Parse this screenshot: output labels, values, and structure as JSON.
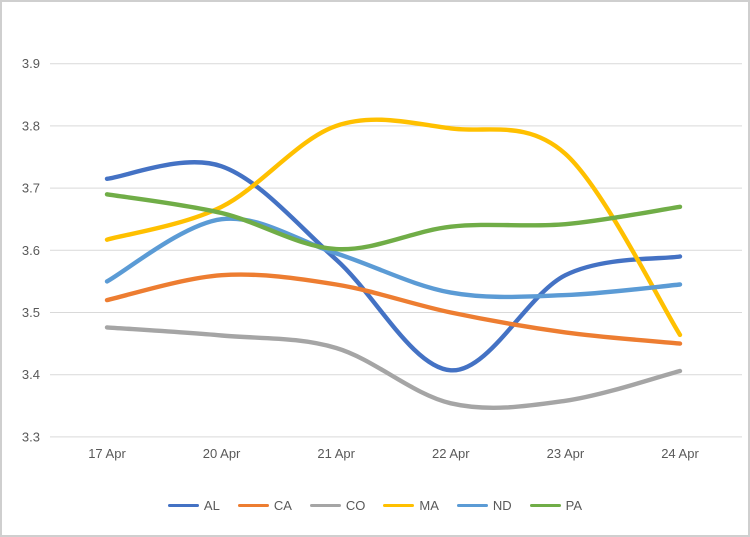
{
  "chart_data": {
    "type": "line",
    "smooth": true,
    "title": "",
    "xlabel": "",
    "ylabel": "",
    "categories": [
      "17 Apr",
      "20 Apr",
      "21 Apr",
      "22 Apr",
      "23 Apr",
      "24 Apr"
    ],
    "series": [
      {
        "name": "AL",
        "color": "#4472C4",
        "values": [
          3.715,
          3.735,
          3.585,
          3.407,
          3.56,
          3.59
        ]
      },
      {
        "name": "CA",
        "color": "#ED7D31",
        "values": [
          3.52,
          3.56,
          3.545,
          3.5,
          3.468,
          3.45
        ]
      },
      {
        "name": "CO",
        "color": "#A5A5A5",
        "values": [
          3.476,
          3.463,
          3.443,
          3.354,
          3.358,
          3.406
        ]
      },
      {
        "name": "MA",
        "color": "#FFC000",
        "values": [
          3.617,
          3.67,
          3.8,
          3.796,
          3.755,
          3.464
        ]
      },
      {
        "name": "ND",
        "color": "#5B9BD5",
        "values": [
          3.55,
          3.65,
          3.595,
          3.532,
          3.528,
          3.545
        ]
      },
      {
        "name": "PA",
        "color": "#70AD47",
        "values": [
          3.69,
          3.66,
          3.602,
          3.638,
          3.642,
          3.67
        ]
      }
    ],
    "y_ticks": [
      3.9,
      3.8,
      3.7,
      3.6,
      3.5,
      3.4,
      3.3
    ],
    "y_tick_labels": [
      "3.9",
      "3.8",
      "3.7",
      "3.6",
      "3.5",
      "3.4",
      "3.3"
    ],
    "ylim": [
      3.3,
      3.9
    ],
    "grid": true,
    "legend_position": "bottom",
    "legend_labels": [
      "AL",
      "CA",
      "CO",
      "MA",
      "ND",
      "PA"
    ]
  },
  "colors": {
    "gridline": "#D9D9D9",
    "axis_text": "#595959",
    "background": "#FFFFFF",
    "frame_border": "#CFCFCF"
  }
}
